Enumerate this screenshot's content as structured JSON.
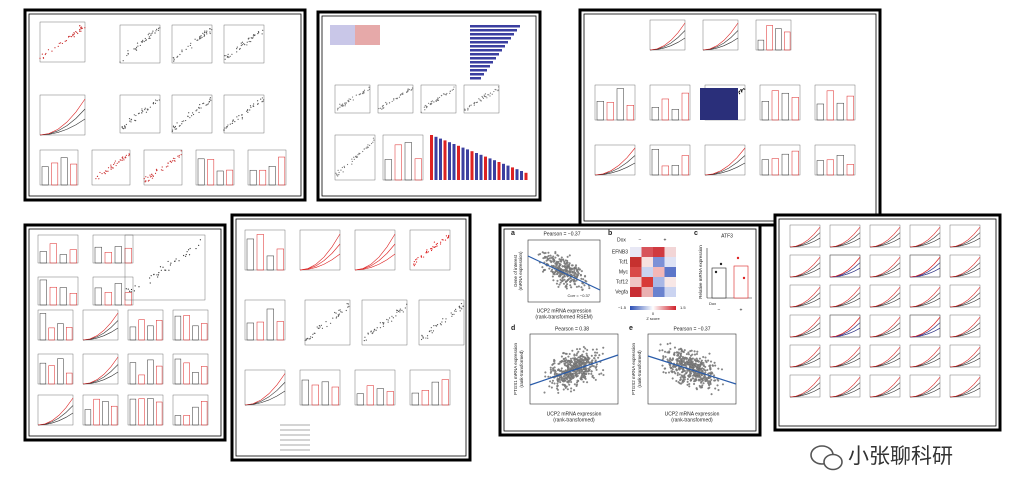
{
  "watermark": "小张聊科研",
  "figure": {
    "panel_a": {
      "letter": "a",
      "stat": "Pearson = −0.37",
      "corr": "Corr = −0.37",
      "y_label": "Gene of interest",
      "y_label_2": "(mRNA expression)",
      "x_label": "UCP2 mRNA expression",
      "x_label_2": "(rank-transformed RSEM)"
    },
    "panel_b": {
      "letter": "b",
      "group": "Dox",
      "minus": "−",
      "plus": "+",
      "genes": [
        "EFNB3",
        "Tcf1",
        "Myc",
        "Tcf12",
        "Vegfa"
      ],
      "scale_min": "−1.5",
      "scale_mid": "0",
      "scale_max": "1.5",
      "scale_title": "Z score"
    },
    "panel_c": {
      "letter": "c",
      "title": "ATF3",
      "y_label": "Relative mRNA expression",
      "x_title": "Dox",
      "minus": "−",
      "plus": "+"
    },
    "panel_d": {
      "letter": "d",
      "stat": "Pearson = 0.38",
      "y_label": "PTGS1 mRNA expression",
      "y_label_2": "(rank-transformed)",
      "x_label": "UCP2 mRNA expression",
      "x_label_2": "(rank-transformed)"
    },
    "panel_e": {
      "letter": "e",
      "stat": "Pearson = −0.37",
      "y_label": "PTGS2 mRNA expression",
      "y_label_2": "(rank-transformed)",
      "x_label": "UCP2 mRNA expression",
      "x_label_2": "(rank-transformed)"
    }
  }
}
